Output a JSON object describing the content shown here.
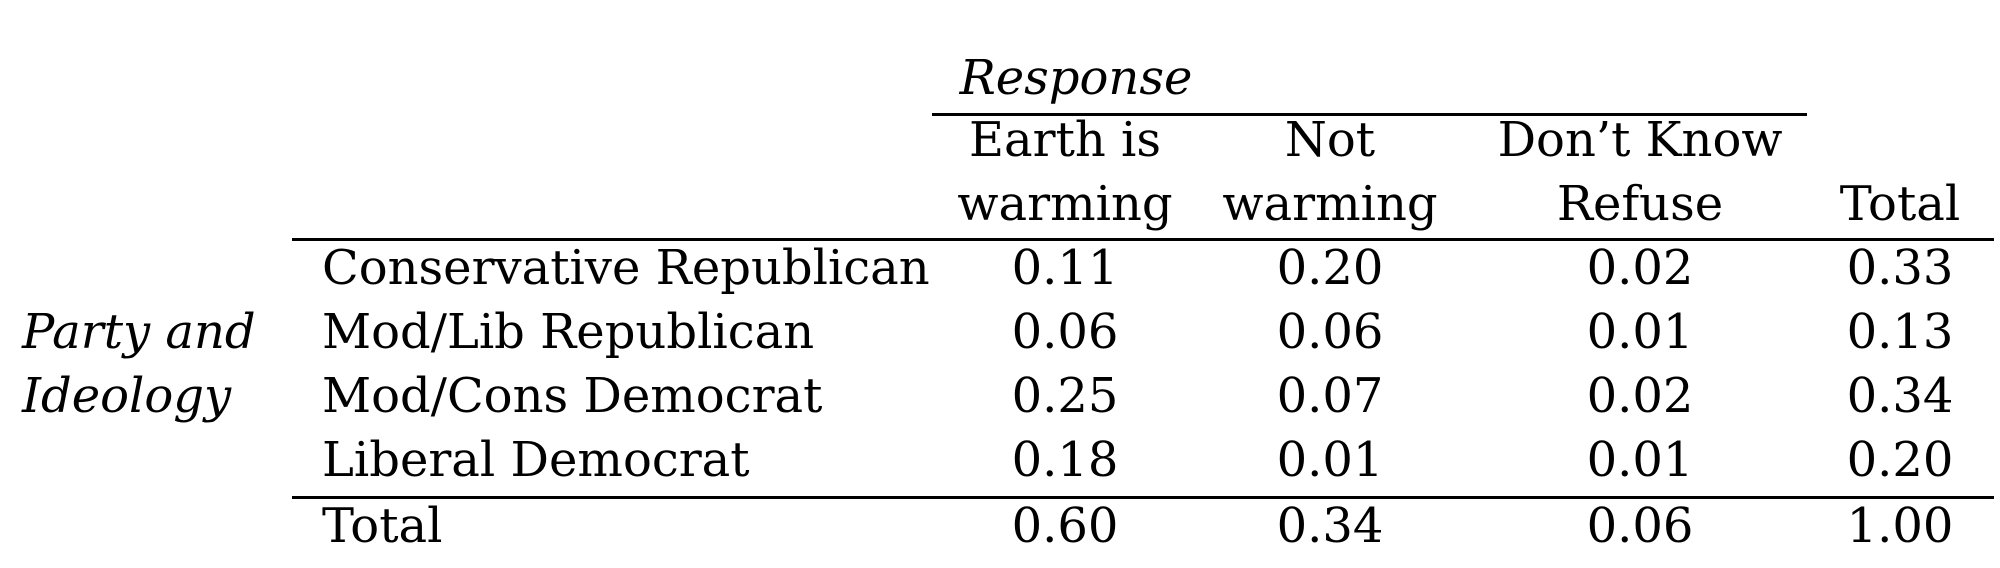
{
  "table": {
    "response_heading": "Response",
    "row_group_label": {
      "line1": "Party and",
      "line2": "Ideology"
    },
    "columns": [
      {
        "line1": "Earth is",
        "line2": "warming"
      },
      {
        "line1": "Not",
        "line2": "warming"
      },
      {
        "line1": "Don’t Know",
        "line2": "Refuse"
      },
      {
        "line1": "",
        "line2": "Total"
      }
    ],
    "rows": [
      {
        "label": "Conservative Republican",
        "values": [
          "0.11",
          "0.20",
          "0.02",
          "0.33"
        ]
      },
      {
        "label": "Mod/Lib Republican",
        "values": [
          "0.06",
          "0.06",
          "0.01",
          "0.13"
        ]
      },
      {
        "label": "Mod/Cons Democrat",
        "values": [
          "0.25",
          "0.07",
          "0.02",
          "0.34"
        ]
      },
      {
        "label": "Liberal Democrat",
        "values": [
          "0.18",
          "0.01",
          "0.01",
          "0.20"
        ]
      }
    ],
    "total_row": {
      "label": "Total",
      "values": [
        "0.60",
        "0.34",
        "0.06",
        "1.00"
      ]
    }
  }
}
